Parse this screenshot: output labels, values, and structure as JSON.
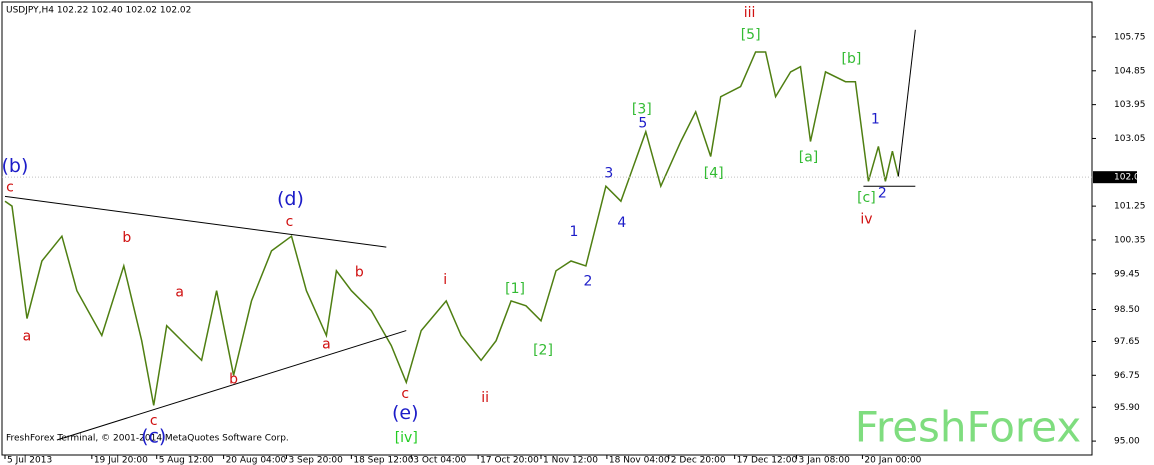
{
  "chart_data": {
    "type": "line",
    "title": "USDJPY,H4  102.22 102.40 102.02 102.02",
    "footer": "FreshForex Terminal, © 2001-2014 MetaQuotes Software Corp.",
    "watermark": "FreshForex",
    "color": "#4f7f12",
    "xlim": [
      0,
      1092
    ],
    "ylim": [
      94.63,
      106.68
    ],
    "xticks": [
      {
        "value": 3,
        "label": "5 Jul 2013"
      },
      {
        "value": 90,
        "label": "19 Jul 20:00"
      },
      {
        "value": 155,
        "label": "5 Aug 12:00"
      },
      {
        "value": 222,
        "label": "20 Aug 04:00"
      },
      {
        "value": 285,
        "label": "3 Sep 20:00"
      },
      {
        "value": 350,
        "label": "18 Sep 12:00"
      },
      {
        "value": 410,
        "label": "3 Oct 04:00"
      },
      {
        "value": 477,
        "label": "17 Oct 20:00"
      },
      {
        "value": 540,
        "label": "1 Nov 12:00"
      },
      {
        "value": 606,
        "label": "18 Nov 04:00"
      },
      {
        "value": 668,
        "label": "2 Dec 20:00"
      },
      {
        "value": 734,
        "label": "17 Dec 12:00"
      },
      {
        "value": 796,
        "label": "3 Jan 08:00"
      },
      {
        "value": 862,
        "label": "20 Jan 00:00"
      }
    ],
    "yticks": [
      {
        "value": 95,
        "label": "95.00"
      },
      {
        "value": 95.9,
        "label": "95.90"
      },
      {
        "value": 96.75,
        "label": "96.75"
      },
      {
        "value": 97.65,
        "label": "97.65"
      },
      {
        "value": 98.5,
        "label": "98.50"
      },
      {
        "value": 99.45,
        "label": "99.45"
      },
      {
        "value": 100.35,
        "label": "100.35"
      },
      {
        "value": 101.25,
        "label": "101.25"
      },
      {
        "value": 103.05,
        "label": "103.05"
      },
      {
        "value": 103.95,
        "label": "103.95"
      },
      {
        "value": 104.85,
        "label": "104.85"
      },
      {
        "value": 105.75,
        "label": "105.75"
      }
    ],
    "current_price": {
      "value": 102.02,
      "label": "102.02"
    },
    "x": [
      3,
      10,
      25,
      40,
      60,
      75,
      100,
      122,
      140,
      152,
      165,
      185,
      200,
      215,
      232,
      250,
      270,
      290,
      305,
      325,
      335,
      350,
      370,
      390,
      405,
      420,
      445,
      460,
      480,
      495,
      510,
      525,
      540,
      555,
      570,
      585,
      605,
      620,
      645,
      660,
      680,
      695,
      710,
      720,
      740,
      755,
      765,
      775,
      790,
      800,
      810,
      825,
      845,
      855,
      868,
      878,
      885,
      892,
      898
    ],
    "values": [
      101.38,
      101.25,
      98.26,
      99.79,
      100.45,
      99.0,
      97.81,
      99.66,
      97.67,
      95.95,
      98.07,
      97.54,
      97.15,
      99.0,
      96.75,
      98.73,
      100.06,
      100.45,
      99.0,
      97.81,
      99.53,
      99.0,
      98.47,
      97.54,
      96.56,
      97.94,
      98.73,
      97.81,
      97.15,
      97.67,
      98.73,
      98.6,
      98.2,
      99.53,
      99.79,
      99.66,
      101.78,
      101.38,
      103.23,
      101.78,
      102.97,
      103.76,
      102.57,
      104.16,
      104.43,
      105.35,
      105.35,
      104.16,
      104.82,
      104.96,
      102.97,
      104.82,
      104.56,
      104.56,
      101.91,
      102.84,
      101.91,
      102.71,
      102.04
    ],
    "lines": [
      {
        "x": [
          3,
          385
        ],
        "values": [
          101.51,
          100.16
        ]
      },
      {
        "x": [
          55,
          405
        ],
        "values": [
          95.03,
          97.94
        ]
      },
      {
        "x": [
          863,
          915
        ],
        "values": [
          101.78,
          101.78
        ]
      },
      {
        "x": [
          898,
          915
        ],
        "values": [
          102.04,
          105.94
        ]
      }
    ],
    "annotations": [
      {
        "text": "(b)",
        "color": "#1c1cc8",
        "x": 13,
        "y": 102.31
      },
      {
        "text": "c",
        "color": "#d01010",
        "x": 8,
        "y": 101.75
      },
      {
        "text": "a",
        "color": "#d01010",
        "x": 25,
        "y": 97.78
      },
      {
        "text": "b",
        "color": "#d01010",
        "x": 125,
        "y": 100.4
      },
      {
        "text": "c",
        "color": "#d01010",
        "x": 152,
        "y": 95.53
      },
      {
        "text": "(c)",
        "color": "#1c1cc8",
        "x": 152,
        "y": 95.11
      },
      {
        "text": "a",
        "color": "#d01010",
        "x": 178,
        "y": 98.95
      },
      {
        "text": "b",
        "color": "#d01010",
        "x": 232,
        "y": 96.64
      },
      {
        "text": "(d)",
        "color": "#1c1cc8",
        "x": 289,
        "y": 101.43
      },
      {
        "text": "c",
        "color": "#d01010",
        "x": 288,
        "y": 100.83
      },
      {
        "text": "a",
        "color": "#d01010",
        "x": 325,
        "y": 97.57
      },
      {
        "text": "b",
        "color": "#d01010",
        "x": 358,
        "y": 99.48
      },
      {
        "text": "c",
        "color": "#d01010",
        "x": 404,
        "y": 96.25
      },
      {
        "text": "(e)",
        "color": "#1c1cc8",
        "x": 404,
        "y": 95.74
      },
      {
        "text": "[iv]",
        "color": "#22cc22",
        "x": 405,
        "y": 95.08
      },
      {
        "text": "i",
        "color": "#d01010",
        "x": 444,
        "y": 99.29
      },
      {
        "text": "ii",
        "color": "#d01010",
        "x": 484,
        "y": 96.14
      },
      {
        "text": "[1]",
        "color": "#33bb33",
        "x": 514,
        "y": 99.05
      },
      {
        "text": "[2]",
        "color": "#33bb33",
        "x": 542,
        "y": 97.41
      },
      {
        "text": "1",
        "color": "#1c1cc8",
        "x": 573,
        "y": 100.56
      },
      {
        "text": "2",
        "color": "#1c1cc8",
        "x": 587,
        "y": 99.24
      },
      {
        "text": "3",
        "color": "#1c1cc8",
        "x": 608,
        "y": 102.12
      },
      {
        "text": "4",
        "color": "#1c1cc8",
        "x": 621,
        "y": 100.8
      },
      {
        "text": "[3]",
        "color": "#33bb33",
        "x": 641,
        "y": 103.82
      },
      {
        "text": "5",
        "color": "#1c1cc8",
        "x": 642,
        "y": 103.45
      },
      {
        "text": "[4]",
        "color": "#33bb33",
        "x": 713,
        "y": 102.12
      },
      {
        "text": "iii",
        "color": "#d01010",
        "x": 749,
        "y": 106.39
      },
      {
        "text": "[5]",
        "color": "#33bb33",
        "x": 750,
        "y": 105.8
      },
      {
        "text": "[a]",
        "color": "#33bb33",
        "x": 808,
        "y": 102.55
      },
      {
        "text": "[b]",
        "color": "#33bb33",
        "x": 851,
        "y": 105.17
      },
      {
        "text": "1",
        "color": "#1c1cc8",
        "x": 875,
        "y": 103.55
      },
      {
        "text": "[c]",
        "color": "#33bb33",
        "x": 866,
        "y": 101.46
      },
      {
        "text": "2",
        "color": "#1c1cc8",
        "x": 882,
        "y": 101.59
      },
      {
        "text": "iv",
        "color": "#d01010",
        "x": 866,
        "y": 100.9
      }
    ]
  }
}
